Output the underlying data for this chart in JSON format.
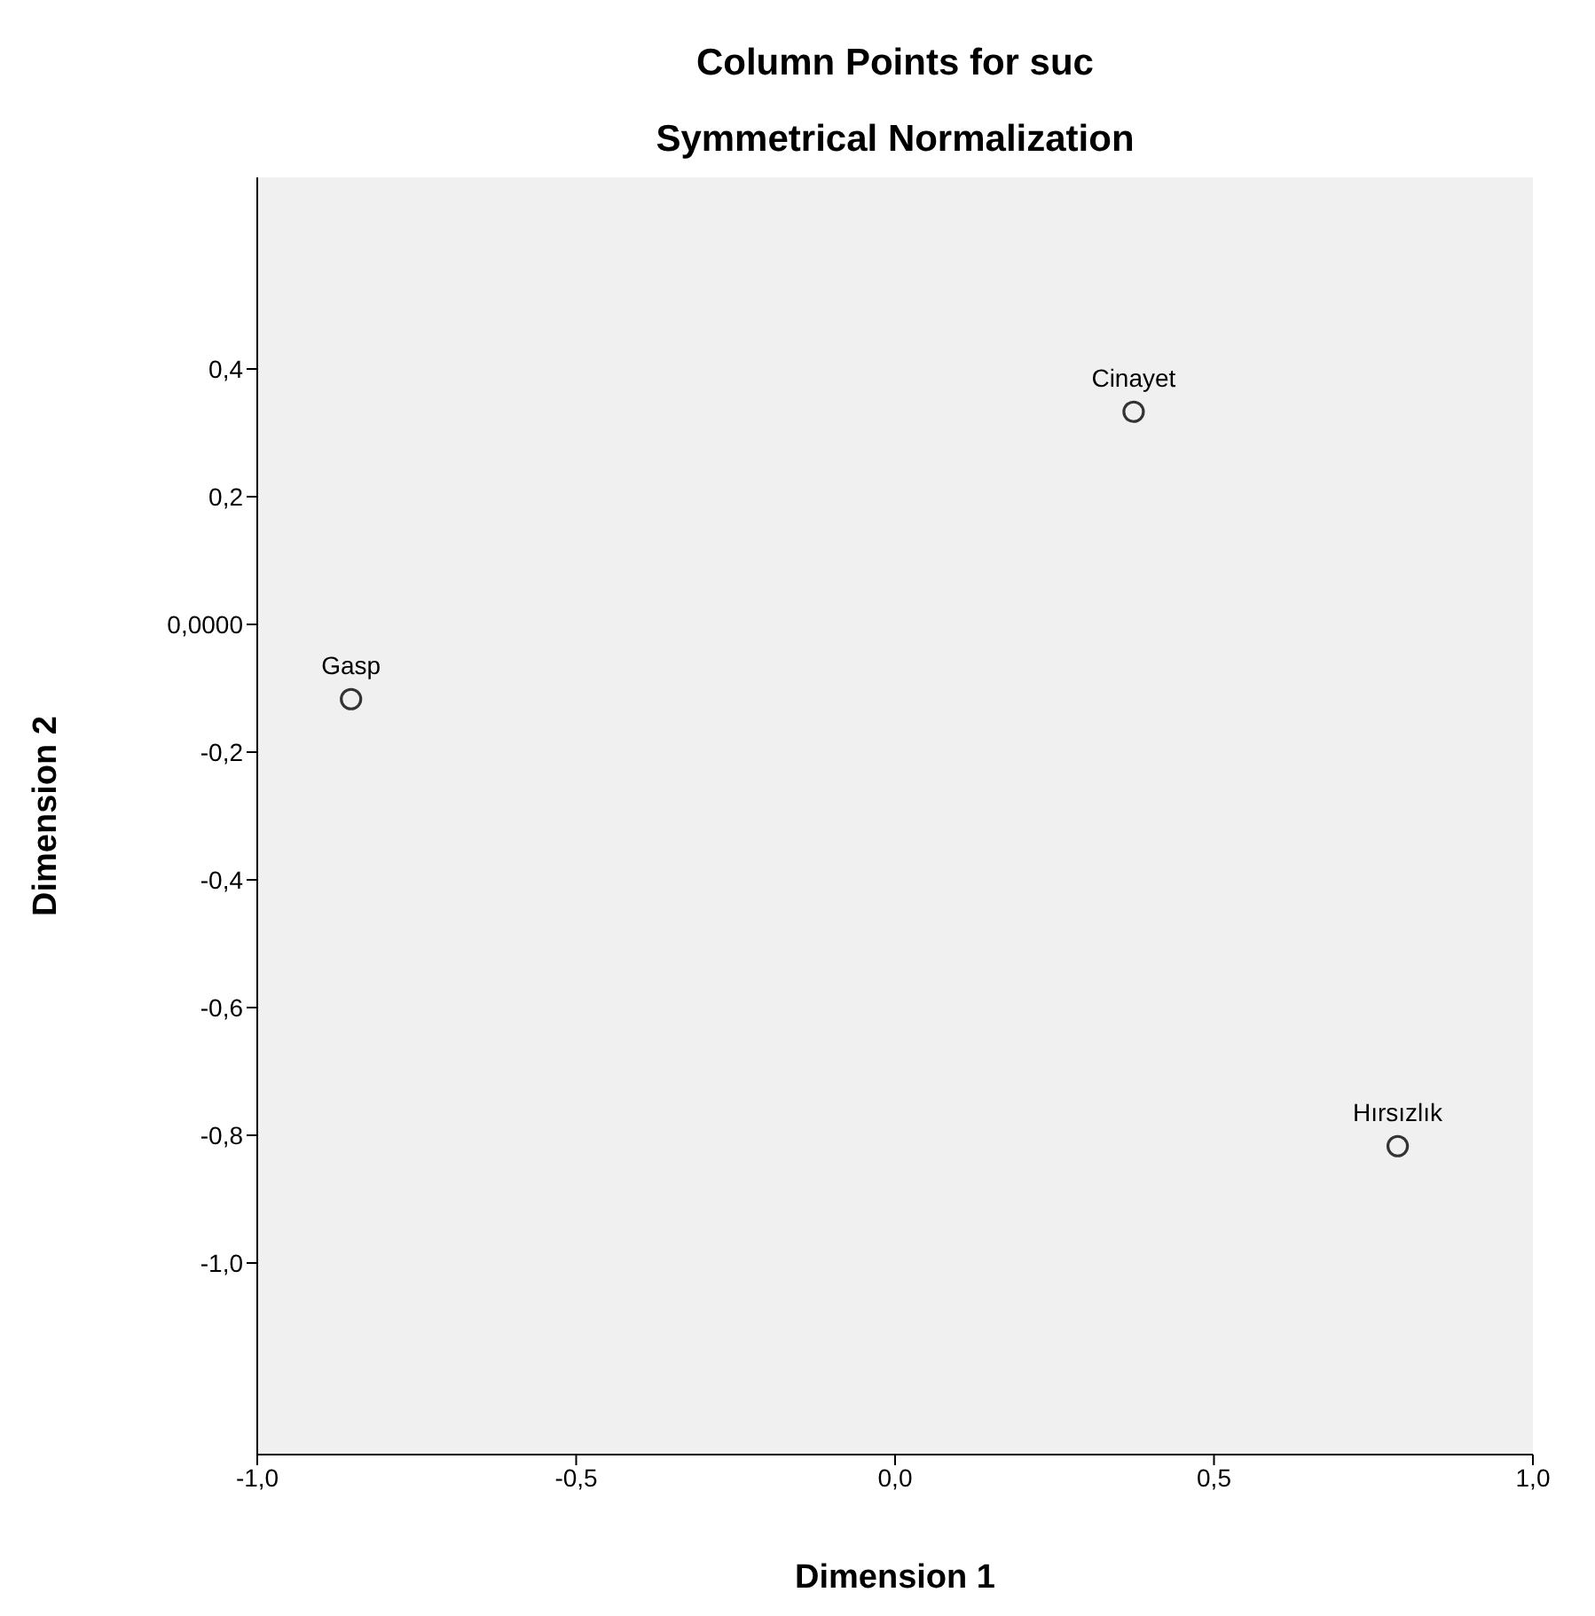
{
  "chart_data": {
    "type": "scatter",
    "title": "Column Points for suc",
    "subtitle": "Symmetrical Normalization",
    "xlabel": "Dimension 1",
    "ylabel": "Dimension 2",
    "x": [
      0.374,
      -0.853,
      0.788
    ],
    "series": [
      {
        "color": "#333333",
        "values": [
          0.333,
          -0.117,
          -0.817
        ]
      }
    ],
    "annotations": [
      {
        "text": "Cinayet",
        "x": 0.374,
        "y": 0.333
      },
      {
        "text": "Gasp",
        "x": -0.853,
        "y": -0.117
      },
      {
        "text": "Hırsızlık",
        "x": 0.788,
        "y": -0.817
      }
    ],
    "xlim": [
      -1,
      1
    ],
    "xticks": [
      {
        "value": -1,
        "label": "-1,0"
      },
      {
        "value": -0.5,
        "label": "-0,5"
      },
      {
        "value": 0,
        "label": "0,0"
      },
      {
        "value": 0.5,
        "label": "0,5"
      },
      {
        "value": 1,
        "label": "1,0"
      }
    ],
    "ylim": [
      -1.3,
      0.7
    ],
    "yticks": [
      {
        "value": 0.4,
        "label": "0,4"
      },
      {
        "value": 0.2,
        "label": "0,2"
      },
      {
        "value": 0,
        "label": "0,0000"
      },
      {
        "value": -0.2,
        "label": "-0,2"
      },
      {
        "value": -0.4,
        "label": "-0,4"
      },
      {
        "value": -0.6,
        "label": "-0,6"
      },
      {
        "value": -0.8,
        "label": "-0,8"
      },
      {
        "value": -1,
        "label": "-1,0"
      }
    ],
    "marker": "circle",
    "legend": false,
    "grid": false
  }
}
